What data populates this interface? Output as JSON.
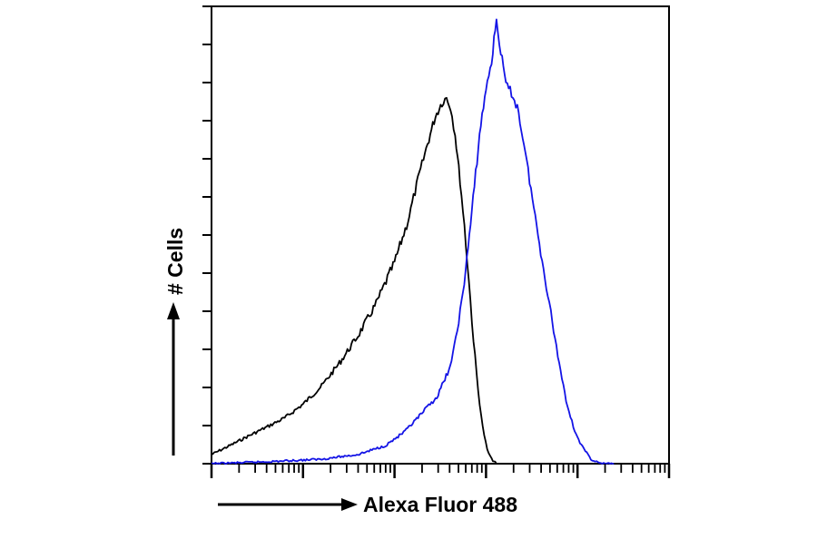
{
  "chart_data": {
    "type": "line",
    "title": "",
    "xlabel": "Alexa Fluor 488",
    "ylabel": "# Cells",
    "xscale": "log",
    "xlim": [
      1,
      100000
    ],
    "ylim": [
      0,
      100
    ],
    "y_tick_count": 12,
    "grid": false,
    "legend": "none",
    "series": [
      {
        "color": "#000000",
        "points": [
          [
            1.0,
            2
          ],
          [
            1.6,
            4
          ],
          [
            2.5,
            6
          ],
          [
            4,
            8
          ],
          [
            6.3,
            10
          ],
          [
            10,
            13
          ],
          [
            16,
            17
          ],
          [
            25,
            22
          ],
          [
            40,
            28
          ],
          [
            63,
            35
          ],
          [
            100,
            44
          ],
          [
            140,
            53
          ],
          [
            180,
            62
          ],
          [
            230,
            70
          ],
          [
            280,
            76
          ],
          [
            330,
            79
          ],
          [
            370,
            80
          ],
          [
            410,
            78
          ],
          [
            460,
            72
          ],
          [
            520,
            62
          ],
          [
            580,
            52
          ],
          [
            650,
            40
          ],
          [
            730,
            27
          ],
          [
            820,
            16
          ],
          [
            920,
            8
          ],
          [
            1030,
            3
          ],
          [
            1150,
            1
          ],
          [
            1300,
            0
          ]
        ]
      },
      {
        "color": "#1414e6",
        "points": [
          [
            1.0,
            0
          ],
          [
            5,
            0.5
          ],
          [
            16,
            1
          ],
          [
            40,
            2
          ],
          [
            80,
            4
          ],
          [
            130,
            7
          ],
          [
            200,
            11
          ],
          [
            300,
            15
          ],
          [
            420,
            22
          ],
          [
            560,
            37
          ],
          [
            700,
            55
          ],
          [
            850,
            72
          ],
          [
            1000,
            82
          ],
          [
            1150,
            88
          ],
          [
            1300,
            97
          ],
          [
            1450,
            90
          ],
          [
            1650,
            83
          ],
          [
            1900,
            81
          ],
          [
            2200,
            78
          ],
          [
            2600,
            70
          ],
          [
            3100,
            60
          ],
          [
            3700,
            50
          ],
          [
            4400,
            41
          ],
          [
            5300,
            31
          ],
          [
            6300,
            22
          ],
          [
            7500,
            14
          ],
          [
            9000,
            8
          ],
          [
            11000,
            4
          ],
          [
            14000,
            1
          ],
          [
            18000,
            0
          ],
          [
            25000,
            0
          ]
        ]
      }
    ]
  }
}
